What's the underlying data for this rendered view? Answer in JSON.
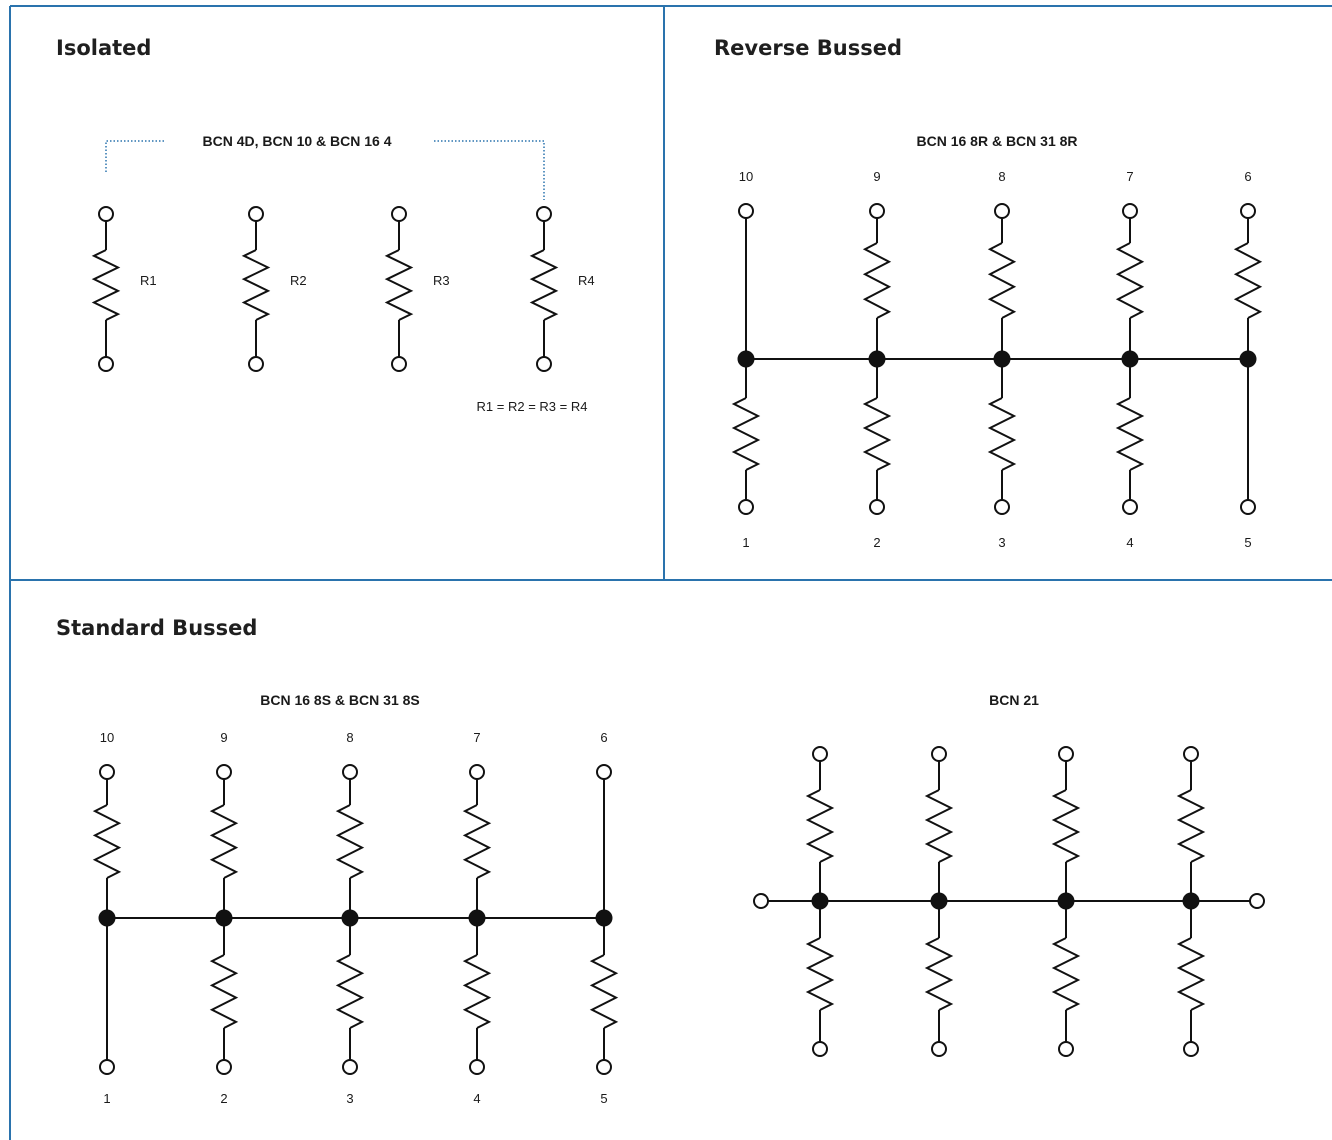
{
  "colors": {
    "frame": "#2a73ad",
    "wire": "#111111",
    "bracket": "#2a73ad"
  },
  "panels": {
    "isolated": {
      "title": "Isolated",
      "subtitle": "BCN 4D, BCN 10 & BCN 16 4",
      "resistor_labels": [
        "R1",
        "R2",
        "R3",
        "R4"
      ],
      "note": "R1 = R2 = R3 = R4"
    },
    "reverse": {
      "title": "Reverse Bussed",
      "subtitle": "BCN 16 8R & BCN 31 8R",
      "top_pins": [
        "10",
        "9",
        "8",
        "7",
        "6"
      ],
      "bottom_pins": [
        "1",
        "2",
        "3",
        "4",
        "5"
      ]
    },
    "standard": {
      "title": "Standard Bussed",
      "subtitle": "BCN 16 8S & BCN 31 8S",
      "top_pins": [
        "10",
        "9",
        "8",
        "7",
        "6"
      ],
      "bottom_pins": [
        "1",
        "2",
        "3",
        "4",
        "5"
      ]
    },
    "bcn21": {
      "subtitle": "BCN 21"
    }
  }
}
